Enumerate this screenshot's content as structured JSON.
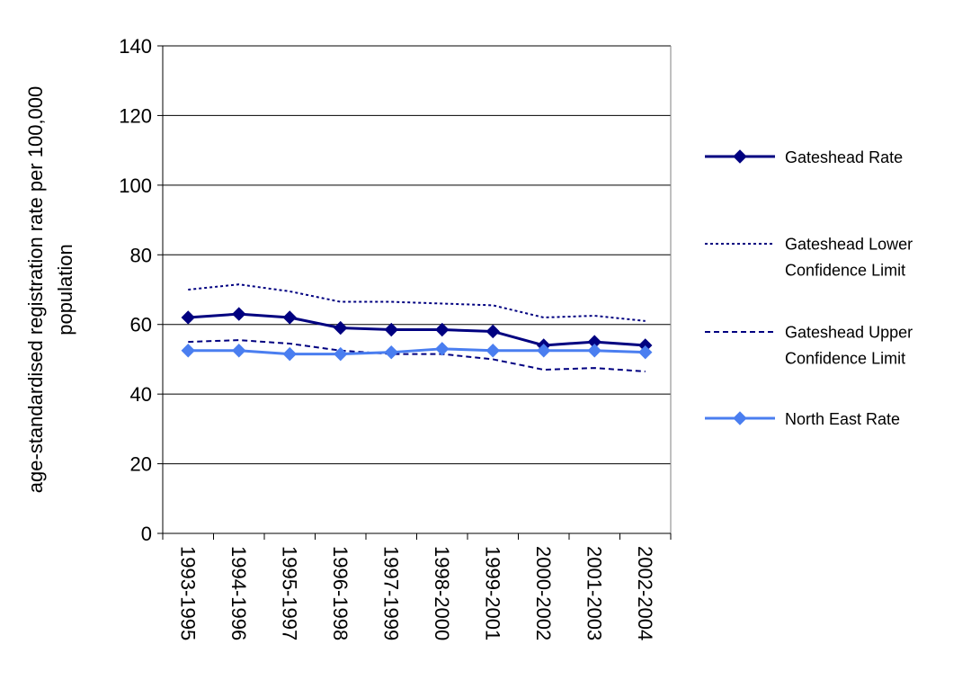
{
  "chart_data": {
    "type": "line",
    "title": "",
    "xlabel": "",
    "ylabel": "age-standardised registration rate per 100,000 population",
    "ylabel_lines": [
      "age-standardised registration rate per 100,000",
      "population"
    ],
    "ylim": [
      0,
      140
    ],
    "yticks": [
      0,
      20,
      40,
      60,
      80,
      100,
      120,
      140
    ],
    "grid": true,
    "legend_position": "right",
    "categories": [
      "1993-1995",
      "1994-1996",
      "1995-1997",
      "1996-1998",
      "1997-1999",
      "1998-2000",
      "1999-2001",
      "2000-2002",
      "2001-2003",
      "2002-2004"
    ],
    "series": [
      {
        "name": "Gateshead Rate",
        "legend_lines": [
          "Gateshead Rate"
        ],
        "style": "solid-marker",
        "color": "#000080",
        "values": [
          62,
          63,
          62,
          59,
          58.5,
          58.5,
          58,
          54,
          55,
          54
        ]
      },
      {
        "name": "Gateshead Lower Confidence Limit",
        "legend_lines": [
          "Gateshead Lower",
          "Confidence Limit"
        ],
        "style": "dotted",
        "color": "#000080",
        "values": [
          70,
          71.5,
          69.5,
          66.5,
          66.5,
          66,
          65.5,
          62,
          62.5,
          61
        ]
      },
      {
        "name": "Gateshead Upper Confidence Limit",
        "legend_lines": [
          "Gateshead Upper",
          "Confidence Limit"
        ],
        "style": "dashed",
        "color": "#000080",
        "values": [
          55,
          55.5,
          54.5,
          52.5,
          51.5,
          51.5,
          50,
          47,
          47.5,
          46.5
        ]
      },
      {
        "name": "North East Rate",
        "legend_lines": [
          "North East Rate"
        ],
        "style": "solid-marker",
        "color": "#4a7ef0",
        "values": [
          52.5,
          52.5,
          51.5,
          51.5,
          52,
          53,
          52.5,
          52.5,
          52.5,
          52
        ]
      }
    ]
  }
}
